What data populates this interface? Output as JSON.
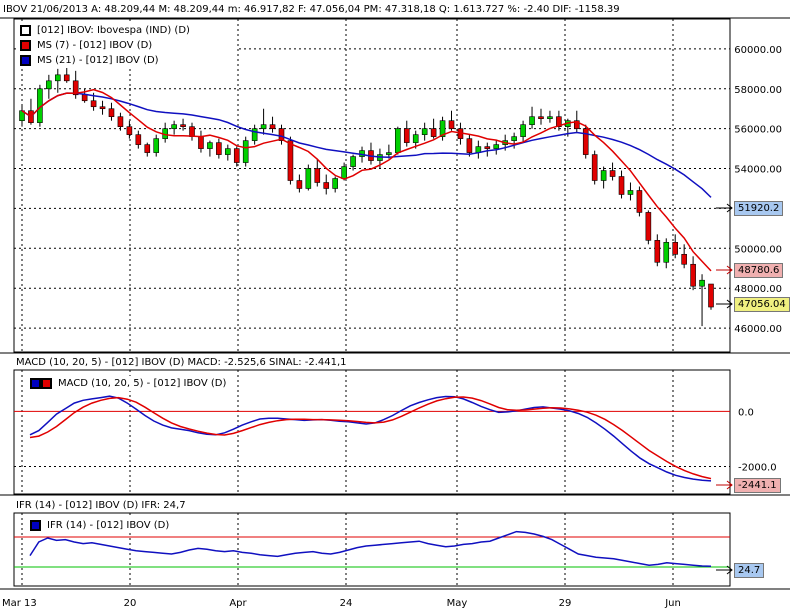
{
  "header": {
    "main": "IBOV   21/06/2013  A: 48.209,44   M: 48.209,44    m: 46.917,82   F: 47.056,04   PM: 47.318,18   Q: 1.613.727  %: -2.40  DIF: -1158.39",
    "macd": "MACD (10, 20, 5)  - [012] IBOV (D)   MACD: -2.525,6    SINAL: -2.441,1",
    "ifr": "IFR (14)  - [012] IBOV (D)   IFR: 24,7"
  },
  "legend_price": [
    {
      "label": "[012] IBOV: Ibovespa          (IND)       (D)",
      "color": "#000000"
    },
    {
      "label": "MS (7)   - [012] IBOV (D)",
      "color": "#e00000"
    },
    {
      "label": "MS (21)   - [012] IBOV (D)",
      "color": "#0000c0"
    }
  ],
  "legend_macd": {
    "label": "MACD (10, 20, 5)   - [012] IBOV (D)"
  },
  "legend_ifr": {
    "label": "IFR (14)   - [012] IBOV (D)"
  },
  "tags": {
    "ms21": "51920.2",
    "ms7": "48780.6",
    "close": "47056.04",
    "macd": "-2441.1",
    "ifr": "24.7"
  },
  "colors": {
    "up": "#00d000",
    "down": "#e00000",
    "ms7": "#e00000",
    "ms21": "#1010c0",
    "macd_line": "#1010c0",
    "signal_line": "#e00000",
    "ifr_line": "#1010c0"
  },
  "chart_data": [
    {
      "type": "candlestick",
      "ylim": [
        44800,
        61500
      ],
      "yticks": [
        "60000.00",
        "58000.00",
        "56000.00",
        "54000.00",
        "52000.00",
        "50000.00",
        "48000.00",
        "46000.00"
      ],
      "xticks": [
        "Mar 13",
        "20",
        "Apr",
        "24",
        "May",
        "29",
        "Jun"
      ],
      "candles": [
        [
          56400,
          57200,
          56100,
          56900
        ],
        [
          56900,
          57500,
          56200,
          56300
        ],
        [
          56300,
          58200,
          56100,
          58000
        ],
        [
          58000,
          58700,
          57500,
          58400
        ],
        [
          58400,
          59000,
          57800,
          58700
        ],
        [
          58700,
          59200,
          58300,
          58400
        ],
        [
          58400,
          58900,
          57500,
          57700
        ],
        [
          57700,
          58000,
          57300,
          57400
        ],
        [
          57400,
          57800,
          56900,
          57100
        ],
        [
          57100,
          57400,
          56700,
          57000
        ],
        [
          57000,
          57300,
          56400,
          56600
        ],
        [
          56600,
          56800,
          55900,
          56100
        ],
        [
          56100,
          56400,
          55500,
          55700
        ],
        [
          55700,
          55900,
          55000,
          55200
        ],
        [
          55200,
          55300,
          54600,
          54800
        ],
        [
          54800,
          55700,
          54600,
          55500
        ],
        [
          55500,
          56300,
          55300,
          56000
        ],
        [
          56000,
          56400,
          55700,
          56200
        ],
        [
          56200,
          56500,
          55900,
          56100
        ],
        [
          56100,
          56300,
          55400,
          55600
        ],
        [
          55600,
          55900,
          54800,
          55000
        ],
        [
          55000,
          55400,
          54600,
          55300
        ],
        [
          55300,
          55500,
          54500,
          54700
        ],
        [
          54700,
          55200,
          54400,
          55000
        ],
        [
          55000,
          55100,
          54100,
          54300
        ],
        [
          54300,
          55600,
          54100,
          55400
        ],
        [
          55400,
          56200,
          55200,
          56000
        ],
        [
          56000,
          57000,
          55700,
          56200
        ],
        [
          56200,
          56600,
          55800,
          56000
        ],
        [
          56000,
          56200,
          55200,
          55400
        ],
        [
          55400,
          55600,
          53200,
          53400
        ],
        [
          53400,
          53700,
          52800,
          53000
        ],
        [
          53000,
          54200,
          52900,
          54000
        ],
        [
          54000,
          54500,
          53100,
          53300
        ],
        [
          53300,
          53700,
          52700,
          53000
        ],
        [
          53000,
          53600,
          52800,
          53500
        ],
        [
          53500,
          54300,
          53400,
          54100
        ],
        [
          54100,
          54700,
          53900,
          54600
        ],
        [
          54600,
          55100,
          54300,
          54900
        ],
        [
          54900,
          55300,
          54200,
          54400
        ],
        [
          54400,
          55000,
          54000,
          54700
        ],
        [
          54700,
          55200,
          54500,
          54800
        ],
        [
          54800,
          56100,
          54700,
          56000
        ],
        [
          56000,
          56400,
          55100,
          55300
        ],
        [
          55300,
          55900,
          55000,
          55700
        ],
        [
          55700,
          56300,
          55400,
          56000
        ],
        [
          56000,
          56500,
          55500,
          55600
        ],
        [
          55600,
          56600,
          55400,
          56400
        ],
        [
          56400,
          56900,
          55900,
          56000
        ],
        [
          56000,
          56300,
          55200,
          55500
        ],
        [
          55500,
          55700,
          54600,
          54800
        ],
        [
          54800,
          55400,
          54500,
          55100
        ],
        [
          55100,
          55300,
          54600,
          55000
        ],
        [
          55000,
          55400,
          54700,
          55200
        ],
        [
          55200,
          55700,
          54900,
          55400
        ],
        [
          55400,
          55800,
          55000,
          55600
        ],
        [
          55600,
          56400,
          55300,
          56200
        ],
        [
          56200,
          57100,
          56000,
          56600
        ],
        [
          56600,
          57000,
          56200,
          56500
        ],
        [
          56500,
          56900,
          56300,
          56600
        ],
        [
          56600,
          56900,
          55900,
          56100
        ],
        [
          56100,
          56500,
          55600,
          56400
        ],
        [
          56400,
          56900,
          55800,
          56000
        ],
        [
          56000,
          56200,
          54500,
          54700
        ],
        [
          54700,
          54900,
          53200,
          53400
        ],
        [
          53400,
          54100,
          53000,
          53900
        ],
        [
          53900,
          54300,
          53400,
          53600
        ],
        [
          53600,
          53900,
          52500,
          52700
        ],
        [
          52700,
          53300,
          52400,
          52900
        ],
        [
          52900,
          53100,
          51600,
          51800
        ],
        [
          51800,
          51900,
          50200,
          50400
        ],
        [
          50400,
          50700,
          49100,
          49300
        ],
        [
          49300,
          50500,
          49000,
          50300
        ],
        [
          50300,
          50700,
          49500,
          49700
        ],
        [
          49700,
          50200,
          49000,
          49200
        ],
        [
          49200,
          49600,
          47900,
          48100
        ],
        [
          48100,
          48700,
          46100,
          48400
        ],
        [
          48209,
          48209,
          46918,
          47056
        ]
      ]
    },
    {
      "type": "line",
      "ylim": [
        -3000,
        1500
      ],
      "yticks": [
        "0.0",
        "-2000.0"
      ],
      "series": [
        {
          "name": "MACD",
          "values": [
            -850,
            -700,
            -400,
            -100,
            100,
            300,
            400,
            450,
            500,
            550,
            480,
            300,
            80,
            -150,
            -350,
            -500,
            -600,
            -650,
            -700,
            -780,
            -830,
            -850,
            -780,
            -650,
            -500,
            -380,
            -280,
            -250,
            -250,
            -280,
            -300,
            -330,
            -310,
            -300,
            -320,
            -360,
            -380,
            -420,
            -460,
            -420,
            -300,
            -150,
            30,
            200,
            320,
            420,
            500,
            540,
            530,
            450,
            320,
            180,
            60,
            -40,
            -20,
            20,
            80,
            140,
            160,
            120,
            80,
            20,
            -80,
            -220,
            -420,
            -650,
            -900,
            -1180,
            -1450,
            -1700,
            -1900,
            -2050,
            -2200,
            -2320,
            -2400,
            -2460,
            -2500,
            -2525
          ]
        },
        {
          "name": "SINAL",
          "values": [
            -950,
            -900,
            -750,
            -550,
            -300,
            -50,
            150,
            300,
            400,
            470,
            500,
            440,
            330,
            150,
            -50,
            -250,
            -420,
            -550,
            -640,
            -720,
            -790,
            -840,
            -860,
            -800,
            -700,
            -590,
            -480,
            -400,
            -340,
            -300,
            -290,
            -290,
            -300,
            -300,
            -310,
            -320,
            -340,
            -370,
            -400,
            -420,
            -390,
            -310,
            -180,
            -30,
            120,
            260,
            380,
            460,
            510,
            520,
            480,
            390,
            270,
            140,
            60,
            40,
            50,
            80,
            110,
            130,
            120,
            90,
            40,
            -30,
            -140,
            -290,
            -480,
            -700,
            -940,
            -1180,
            -1420,
            -1620,
            -1820,
            -2000,
            -2150,
            -2270,
            -2370,
            -2441
          ]
        }
      ]
    },
    {
      "type": "line",
      "ylim": [
        0,
        100
      ],
      "yticks": [
        "24.7"
      ],
      "series": [
        {
          "name": "IFR",
          "values": [
            38,
            55,
            60,
            57,
            58,
            55,
            53,
            54,
            52,
            50,
            48,
            46,
            44,
            43,
            42,
            41,
            40,
            42,
            45,
            47,
            46,
            44,
            43,
            44,
            42,
            41,
            39,
            38,
            37,
            39,
            41,
            42,
            43,
            41,
            40,
            42,
            45,
            48,
            50,
            51,
            52,
            53,
            54,
            55,
            56,
            53,
            51,
            49,
            50,
            52,
            53,
            55,
            56,
            60,
            64,
            68,
            67,
            65,
            62,
            58,
            52,
            46,
            40,
            38,
            36,
            35,
            34,
            32,
            30,
            28,
            26,
            27,
            29,
            28,
            27,
            26,
            25,
            24.7
          ]
        }
      ]
    }
  ]
}
